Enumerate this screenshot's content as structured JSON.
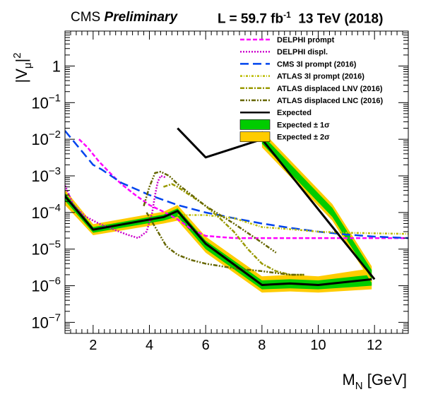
{
  "header": {
    "experiment": "CMS",
    "status": "Preliminary",
    "lumi_prefix": "L = 59.7 fb",
    "lumi_exp": "-1",
    "energy_year": "13 TeV  (2018)"
  },
  "chart_data": {
    "type": "line",
    "title": "",
    "xlabel": "M",
    "xlabel_sub": "N",
    "xlabel_unit": "[GeV]",
    "ylabel": "|V",
    "ylabel_sub": "μ",
    "ylabel_sup": "2",
    "xlim": [
      1,
      13.2
    ],
    "ylim": [
      5e-08,
      9
    ],
    "yscale": "log",
    "xticks": [
      2,
      4,
      6,
      8,
      10,
      12
    ],
    "xtick_labels": [
      "2",
      "4",
      "6",
      "8",
      "10",
      "12"
    ],
    "yticks": [
      1e-07,
      1e-06,
      1e-05,
      0.0001,
      0.001,
      0.01,
      0.1,
      1
    ],
    "ytick_labels": [
      {
        "base": "10",
        "exp": "−7"
      },
      {
        "base": "10",
        "exp": "−6"
      },
      {
        "base": "10",
        "exp": "−5"
      },
      {
        "base": "10",
        "exp": "−4"
      },
      {
        "base": "10",
        "exp": "−3"
      },
      {
        "base": "10",
        "exp": "−2"
      },
      {
        "base": "10",
        "exp": "−1"
      },
      {
        "base": "1",
        "exp": ""
      }
    ],
    "grid": false,
    "legend_position": "top-right",
    "bands": [
      {
        "name": "Expected ± 2σ",
        "color": "#ffcc00",
        "x": [
          1,
          2,
          4.5,
          5,
          6,
          8,
          9,
          10,
          11.9
        ],
        "lower": [
          0.00016,
          2.4e-05,
          5e-05,
          6e-05,
          8e-06,
          6.5e-07,
          7e-07,
          6.5e-07,
          8e-07
        ],
        "upper": [
          0.00042,
          4.8e-05,
          0.000105,
          0.00016,
          2.2e-05,
          1.8e-06,
          2e-06,
          1.8e-06,
          3e-06
        ]
      },
      {
        "name": "Expected ± 1σ",
        "color": "#00cc00",
        "x": [
          1,
          2,
          4.5,
          5,
          6,
          8,
          9,
          10,
          11.9
        ],
        "lower": [
          0.00021,
          2.8e-05,
          6e-05,
          7.8e-05,
          1e-05,
          8e-07,
          8.5e-07,
          8e-07,
          1e-06
        ],
        "upper": [
          0.00034,
          4e-05,
          8.8e-05,
          0.00013,
          1.7e-05,
          1.4e-06,
          1.5e-06,
          1.4e-06,
          2e-06
        ]
      }
    ],
    "series": [
      {
        "name": "DELPHI prompt",
        "color": "#ff00ff",
        "dash": "6,3",
        "width": 2.5,
        "x": [
          1.5,
          1.8,
          2.2,
          2.6,
          3.0,
          3.5,
          4.0,
          4.5,
          5.0,
          5.5,
          6.0,
          7.0,
          8.0,
          9.0,
          10.0,
          11.0,
          12.0,
          13.2
        ],
        "y": [
          0.01,
          0.006,
          0.0025,
          0.0012,
          0.0006,
          0.0003,
          0.00016,
          0.000105,
          6.5e-05,
          3.5e-05,
          2.3e-05,
          2e-05,
          2e-05,
          2e-05,
          2e-05,
          2e-05,
          2e-05,
          2e-05
        ]
      },
      {
        "name": "DELPHI displ.",
        "color": "#cc00cc",
        "dash": "2,2",
        "width": 2.5,
        "x": [
          1.0,
          1.3,
          1.7,
          2.2,
          2.7,
          3.2,
          3.6,
          3.9,
          4.1,
          4.2,
          4.3,
          4.4,
          4.6
        ],
        "y": [
          0.00055,
          0.00016,
          8e-05,
          5e-05,
          3.5e-05,
          2.5e-05,
          2e-05,
          3e-05,
          0.0001,
          0.0003,
          0.0007,
          0.001,
          0.0009
        ]
      },
      {
        "name": "CMS 3l prompt (2016)",
        "color": "#0044ee",
        "dash": "12,6",
        "width": 2.5,
        "x": [
          1.0,
          2.0,
          2.3,
          3.0,
          4.0,
          5.0,
          6.0,
          7.0,
          8.0,
          9.0,
          10.0,
          11.0,
          12.0,
          13.2
        ],
        "y": [
          0.017,
          0.002,
          0.0015,
          0.00065,
          0.0003,
          0.00016,
          0.0001,
          7e-05,
          5e-05,
          3.8e-05,
          3e-05,
          2.5e-05,
          2.2e-05,
          2e-05
        ]
      },
      {
        "name": "ATLAS 3l prompt (2016)",
        "color": "#bbbb00",
        "dash": "3,2,1,2",
        "width": 2.5,
        "x": [
          5.0,
          6.0,
          7.0,
          8.0,
          9.0,
          10.0,
          11.0,
          12.0,
          13.2
        ],
        "y": [
          8.5e-05,
          8.5e-05,
          7e-05,
          4e-05,
          3.5e-05,
          3e-05,
          2.8e-05,
          2.7e-05,
          2.6e-05
        ]
      },
      {
        "name": "ATLAS displaced LNV (2016)",
        "color": "#999900",
        "dash": "6,2,2,2",
        "width": 2.5,
        "x": [
          4.5,
          4.8,
          5.0,
          5.3,
          5.7,
          6.0,
          6.5,
          7.0,
          7.5,
          8.0,
          8.5,
          9.0,
          9.5
        ],
        "y": [
          0.0005,
          0.0006,
          0.0005,
          0.00035,
          0.00022,
          0.00015,
          7e-05,
          3e-05,
          1e-05,
          4e-06,
          2.5e-06,
          2e-06,
          2e-06
        ]
      },
      {
        "name": "ATLAS displaced LNC (2016)",
        "color": "#666600",
        "dash": "6,2,2,2,2,2",
        "width": 2.5,
        "x": [
          3.8,
          4.0,
          4.2,
          4.4,
          4.7,
          5.0,
          5.5,
          6.0,
          7.0,
          8.0,
          8.5
        ],
        "y": [
          0.00015,
          0.0005,
          0.0012,
          0.0013,
          0.001,
          0.0006,
          0.0003,
          0.00015,
          5e-05,
          1.5e-05,
          8e-06
        ]
      },
      {
        "name": "ATLAS displaced LNC (2016)",
        "color": "#666600",
        "dash": "6,2,2,2,2,2",
        "width": 2.5,
        "x": [
          3.9,
          4.3,
          4.6,
          5.0,
          5.5,
          6.0,
          7.0,
          8.0,
          9.0,
          9.5
        ],
        "y": [
          0.0001,
          3e-05,
          1.2e-05,
          7e-06,
          5e-06,
          4e-06,
          3e-06,
          2.5e-06,
          2e-06,
          2e-06
        ]
      },
      {
        "name": "Expected",
        "color": "#000000",
        "dash": "",
        "width": 3,
        "x": [
          1.0,
          2.0,
          4.5,
          5.0,
          6.0,
          8.0,
          9.0,
          10.0,
          11.9
        ],
        "y": [
          0.00028,
          3.4e-05,
          7.5e-05,
          0.00011,
          1.4e-05,
          1.05e-06,
          1.15e-06,
          1.05e-06,
          1.5e-06
        ]
      },
      {
        "name": "Expected",
        "color": "#000000",
        "dash": "",
        "width": 3,
        "x": [
          5.0,
          6.0,
          8.0,
          12.0
        ],
        "y": [
          0.02,
          0.0032,
          0.01,
          1.5e-06
        ]
      }
    ],
    "band_edges": [
      {
        "x": [
          8.0,
          10.5,
          11.9
        ],
        "y": [
          0.01,
          0.0001,
          2e-06
        ],
        "spread_lo": 0.6,
        "spread_hi": 1.7
      }
    ],
    "legend": [
      {
        "label": "DELPHI prompt",
        "kind": "line",
        "color": "#ff00ff",
        "dash": "6,3"
      },
      {
        "label": "DELPHI displ.",
        "kind": "line",
        "color": "#cc00cc",
        "dash": "2,2"
      },
      {
        "label": "CMS 3l prompt (2016)",
        "kind": "line",
        "color": "#0044ee",
        "dash": "12,6"
      },
      {
        "label": "ATLAS 3l prompt (2016)",
        "kind": "line",
        "color": "#bbbb00",
        "dash": "3,2,1,2"
      },
      {
        "label": "ATLAS displaced LNV (2016)",
        "kind": "line",
        "color": "#999900",
        "dash": "6,2,2,2"
      },
      {
        "label": "ATLAS displaced LNC (2016)",
        "kind": "line",
        "color": "#666600",
        "dash": "6,2,2,2,2,2"
      },
      {
        "label": "Expected",
        "kind": "line",
        "color": "#000000",
        "dash": ""
      },
      {
        "label": "Expected ± 1σ",
        "kind": "box",
        "color": "#00cc00"
      },
      {
        "label": "Expected ± 2σ",
        "kind": "box",
        "color": "#ffcc00"
      }
    ]
  }
}
